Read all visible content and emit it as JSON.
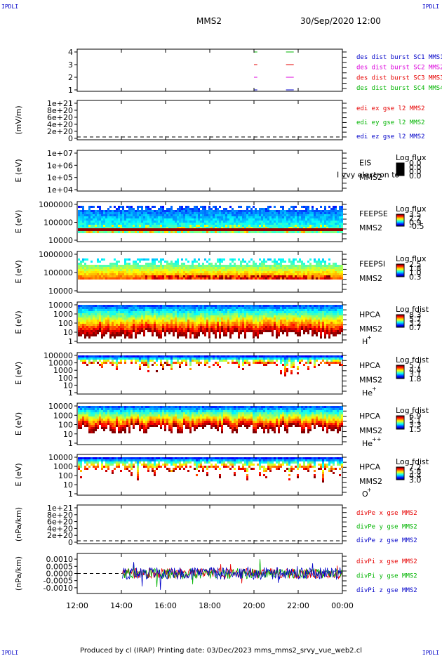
{
  "header": {
    "corner_left": "IPDLI",
    "corner_right": "IPDLI",
    "title": "MMS2",
    "datetime": "30/Sep/2020 12:00"
  },
  "footer": {
    "text": "Produced by cl (IRAP)   Printing date: 03/Dec/2023   mms_mms2_srvy_vue_web2.cl",
    "corner_left": "IPDLI",
    "corner_right": "IPDLI"
  },
  "colors": {
    "blue": "#0000c8",
    "red": "#e60000",
    "magenta": "#dc00dc",
    "green": "#00b400"
  },
  "chart_data": {
    "type": "heatmap",
    "x_tick_labels": [
      "12:00",
      "14:00",
      "16:00",
      "18:00",
      "20:00",
      "22:00",
      "00:00"
    ],
    "xlim": [
      12,
      24
    ],
    "panels": [
      {
        "key": "burst",
        "type": "line",
        "yticks": [
          "1",
          "2",
          "3",
          "4"
        ],
        "ylim": [
          0.5,
          4.5
        ],
        "legend": [
          {
            "text": "des dist burst SC1 MMS1",
            "color": "#0000c8"
          },
          {
            "text": "des dist burst SC2 MMS2",
            "color": "#dc00dc"
          },
          {
            "text": "des dist burst SC3 MMS3",
            "color": "#e60000"
          },
          {
            "text": "des dist burst SC4 MMS4",
            "color": "#00b400"
          }
        ],
        "segments": [
          {
            "y": 4,
            "color": "#00b400",
            "x": [
              [
                20.0,
                20.15
              ],
              [
                21.45,
                21.8
              ]
            ]
          },
          {
            "y": 3,
            "color": "#e60000",
            "x": [
              [
                20.0,
                20.15
              ],
              [
                21.45,
                21.8
              ]
            ]
          },
          {
            "y": 2,
            "color": "#dc00dc",
            "x": [
              [
                20.0,
                20.15
              ],
              [
                21.45,
                21.8
              ]
            ]
          },
          {
            "y": 1,
            "color": "#0000c8",
            "x": [
              [
                20.0,
                20.15
              ],
              [
                21.45,
                21.8
              ]
            ]
          }
        ]
      },
      {
        "key": "edi",
        "type": "line",
        "ylabel": "(mV/m)",
        "yticks": [
          "0",
          "2e+20",
          "4e+20",
          "6e+20",
          "8e+20",
          "1e+21"
        ],
        "ylim": [
          0,
          1e+21
        ],
        "legend": [
          {
            "text": "edi ex gse l2 MMS2",
            "color": "#e60000"
          },
          {
            "text": "edi ey gse l2 MMS2",
            "color": "#00b400"
          },
          {
            "text": "edi ez gse l2 MMS2",
            "color": "#0000c8"
          }
        ],
        "zero_line": true
      },
      {
        "key": "eis",
        "type": "heatmap",
        "ylabel": "E (eV)",
        "yticks": [
          "1e+04",
          "1e+05",
          "1e+06",
          "1e+07"
        ],
        "ylim": [
          10000.0,
          10000000.0
        ],
        "side_label": [
          "EIS",
          "MMS2"
        ],
        "overlay_text": "I vvy electron to",
        "cbar": {
          "title": "Log flux",
          "ticks": [
            "0.0",
            "0.0",
            "0.0",
            "0.0"
          ]
        },
        "fill": "none"
      },
      {
        "key": "feepse",
        "type": "heatmap",
        "ylabel": "E (eV)",
        "yticks": [
          "10000",
          "100000",
          "1000000"
        ],
        "ylim": [
          10000.0,
          1000000.0
        ],
        "side_label": [
          "FEEPSE",
          "MMS2"
        ],
        "cbar": {
          "title": "Log flux",
          "ticks": [
            "3.5",
            "2.2",
            "0.9",
            "-0.5"
          ]
        },
        "fill": "feepse"
      },
      {
        "key": "feepsi",
        "type": "heatmap",
        "ylabel": "E (eV)",
        "yticks": [
          "10000",
          "100000",
          "1000000"
        ],
        "ylim": [
          10000.0,
          1000000.0
        ],
        "side_label": [
          "FEEPSI",
          "MMS2"
        ],
        "cbar": {
          "title": "Log flux",
          "ticks": [
            "2.5",
            "1.8",
            "1.0",
            "0.3"
          ]
        },
        "fill": "feepsi"
      },
      {
        "key": "hpca_h",
        "type": "heatmap",
        "ylabel": "E (eV)",
        "yticks": [
          "1",
          "10",
          "100",
          "1000",
          "10000"
        ],
        "ylim": [
          1,
          20000.0
        ],
        "side_label": [
          "HPCA",
          "MMS2",
          "H",
          "+"
        ],
        "cbar": {
          "title": "Log fdist",
          "ticks": [
            "8.3",
            "5.7",
            "3.2",
            "0.7"
          ]
        },
        "fill": "hpca_h"
      },
      {
        "key": "hpca_he",
        "type": "heatmap",
        "ylabel": "E (eV)",
        "yticks": [
          "1",
          "10",
          "100",
          "1000",
          "10000",
          "100000"
        ],
        "ylim": [
          1,
          100000.0
        ],
        "side_label": [
          "HPCA",
          "MMS2",
          "He",
          "+"
        ],
        "cbar": {
          "title": "Log fdist",
          "ticks": [
            "5.7",
            "4.4",
            "3.1",
            "1.8"
          ]
        },
        "fill": "hpca_he"
      },
      {
        "key": "hpca_hepp",
        "type": "heatmap",
        "ylabel": "E (eV)",
        "yticks": [
          "1",
          "10",
          "100",
          "1000",
          "10000"
        ],
        "ylim": [
          1,
          20000.0
        ],
        "side_label": [
          "HPCA",
          "MMS2",
          "He",
          "++"
        ],
        "cbar": {
          "title": "Log fdist",
          "ticks": [
            "6.9",
            "5.1",
            "3.3",
            "1.5"
          ]
        },
        "fill": "hpca_hepp"
      },
      {
        "key": "hpca_o",
        "type": "heatmap",
        "ylabel": "E (eV)",
        "yticks": [
          "1",
          "10",
          "100",
          "1000",
          "10000"
        ],
        "ylim": [
          1,
          20000.0
        ],
        "side_label": [
          "HPCA",
          "MMS2",
          "O",
          "+"
        ],
        "cbar": {
          "title": "Log fdist",
          "ticks": [
            "7.2",
            "5.8",
            "4.4",
            "3.0"
          ]
        },
        "fill": "hpca_o"
      },
      {
        "key": "divpe",
        "type": "line",
        "ylabel": "(nPa/km)",
        "yticks": [
          "0",
          "2e+20",
          "4e+20",
          "6e+20",
          "8e+20",
          "1e+21"
        ],
        "ylim": [
          0,
          1e+21
        ],
        "legend": [
          {
            "text": "divPe x gse MMS2",
            "color": "#e60000"
          },
          {
            "text": "divPe y gse MMS2",
            "color": "#00b400"
          },
          {
            "text": "divPe z gse MMS2",
            "color": "#0000c8"
          }
        ],
        "zero_line": true
      },
      {
        "key": "divpi",
        "type": "line",
        "ylabel": "(nPa/km)",
        "yticks": [
          "-0.0010",
          "-0.0005",
          "0.0000",
          "0.0005",
          "0.0010"
        ],
        "ylim": [
          -0.0014,
          0.0014
        ],
        "legend": [
          {
            "text": "divPi x gse MMS2",
            "color": "#e60000"
          },
          {
            "text": "divPi y gse MMS2",
            "color": "#00b400"
          },
          {
            "text": "divPi z gse MMS2",
            "color": "#0000c8"
          }
        ],
        "noise": {
          "start": 14.05,
          "amplitude": 0.0004
        },
        "zero_line": true
      }
    ]
  }
}
